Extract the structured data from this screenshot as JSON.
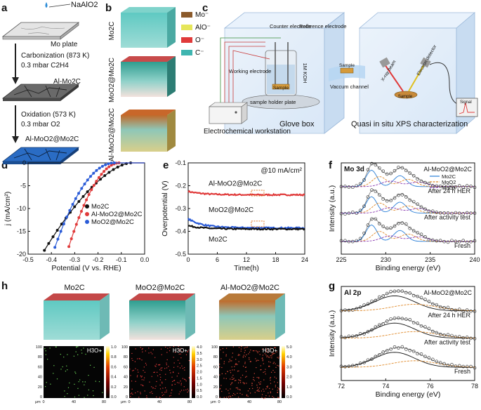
{
  "panel_letters": {
    "a": "a",
    "b": "b",
    "c": "c",
    "d": "d",
    "e": "e",
    "f": "f",
    "g": "g",
    "h": "h"
  },
  "panel_a": {
    "precursor": "NaAlO2",
    "plate": "Mo plate",
    "step1_title": "Carbonization (873 K)",
    "step1_gas": "0.3 mbar C2H4",
    "product1": "Al-Mo2C",
    "step2_title": "Oxidation (573 K)",
    "step2_gas": "0.3 mbar O2",
    "product2": "Al-MoO2@Mo2C"
  },
  "panel_b": {
    "samples": [
      "Mo2C",
      "MoO2@Mo2C",
      "Al-MoO2@Mo2C"
    ],
    "legend": [
      {
        "label": "Mo⁻",
        "color": "#8b5a2b"
      },
      {
        "label": "AlO⁻",
        "color": "#e6e65a"
      },
      {
        "label": "O⁻",
        "color": "#e03a3a"
      },
      {
        "label": "C⁻",
        "color": "#3fb5b0"
      }
    ]
  },
  "panel_c": {
    "counter": "Counter electrode",
    "reference": "Reference electrode",
    "working": "Working electrode",
    "electrolyte": "1M KOH",
    "sample": "Sample",
    "holder": "sample holder plate",
    "channel": "Vaccum channel",
    "xray": "X-ray beam",
    "detector": "Electron detector",
    "signal": "Signal",
    "workstation": "Electrochemical workstation",
    "glovebox": "Glove box",
    "xps": "Quasi in situ XPS characterization"
  },
  "chart_data": [
    {
      "id": "d",
      "type": "line",
      "xlabel": "Potential (V vs. RHE)",
      "ylabel": "j (mA/cm²)",
      "xlim": [
        -0.5,
        0.0
      ],
      "ylim": [
        -20,
        0
      ],
      "xticks": [
        "-0.5",
        "-0.4",
        "-0.3",
        "-0.2",
        "-0.1",
        "0.0"
      ],
      "yticks": [
        "0",
        "-5",
        "-10",
        "-15",
        "-20"
      ],
      "series": [
        {
          "name": "Mo2C",
          "color": "#111111",
          "onset": -0.06,
          "x20": -0.44,
          "exp": 1.6
        },
        {
          "name": "Al-MoO2@Mo2C",
          "color": "#e03a3a",
          "onset": -0.11,
          "x20": -0.335,
          "exp": 1.9
        },
        {
          "name": "MoO2@Mo2C",
          "color": "#2a5bd7",
          "onset": -0.13,
          "x20": -0.395,
          "exp": 2.0
        }
      ]
    },
    {
      "id": "e",
      "type": "line",
      "xlabel": "Time(h)",
      "ylabel": "Overpotential (V)",
      "annotation": "@10 mA/cm²",
      "xlim": [
        0,
        24
      ],
      "ylim": [
        -0.5,
        -0.1
      ],
      "xticks": [
        "0",
        "6",
        "12",
        "18",
        "24"
      ],
      "yticks": [
        "-0.1",
        "-0.2",
        "-0.3",
        "-0.4",
        "-0.5"
      ],
      "series": [
        {
          "name": "Al-MoO2@Mo2C",
          "color": "#e03a3a",
          "start": -0.225,
          "end": -0.24
        },
        {
          "name": "MoO2@Mo2C",
          "color": "#2a5bd7",
          "start": -0.345,
          "end": -0.385
        },
        {
          "name": "Mo2C",
          "color": "#111111",
          "start": -0.375,
          "end": -0.39
        }
      ]
    },
    {
      "id": "f",
      "type": "line",
      "title": "Mo 3d",
      "sample": "Al-MoO2@Mo2C",
      "xlabel": "Binding energy (eV)",
      "ylabel": "Intensity (a.u.)",
      "xlim": [
        225,
        240
      ],
      "xticks": [
        "225",
        "230",
        "235",
        "240"
      ],
      "legend": [
        {
          "label": "Mo2C",
          "color": "#2a7fd7"
        },
        {
          "label": "MoO2",
          "color": "#e08a2a"
        },
        {
          "label": "MoOx",
          "color": "#8a3ab0"
        }
      ],
      "traces": [
        "After 24 h HER",
        "After activity test",
        "Fresh"
      ]
    },
    {
      "id": "g",
      "type": "line",
      "title": "Al 2p",
      "sample": "Al-MoO2@Mo2C",
      "xlabel": "Binding energy (eV)",
      "ylabel": "Intensity (a.u.)",
      "xlim": [
        72,
        78
      ],
      "xticks": [
        "72",
        "74",
        "76",
        "78"
      ],
      "traces": [
        "After 24 h HER",
        "After activity test",
        "Fresh"
      ]
    }
  ],
  "panel_h": {
    "samples": [
      "Mo2C",
      "MoO2@Mo2C",
      "Al-MoO2@Mo2C"
    ],
    "map_label": "H3O+",
    "axis_unit": "μm",
    "axis_ticks": [
      "0",
      "40",
      "80"
    ],
    "yticks": [
      "100",
      "80",
      "60",
      "40",
      "20",
      "0"
    ],
    "scales": [
      [
        "1.0",
        "0.8",
        "0.6",
        "0.4",
        "0.2",
        "0.0"
      ],
      [
        "4.0",
        "3.5",
        "3.0",
        "2.5",
        "2.0",
        "1.5",
        "1.0",
        "0.5",
        "0.0"
      ],
      [
        "5.0",
        "4.0",
        "3.0",
        "2.0",
        "1.0",
        "0.0"
      ]
    ]
  }
}
